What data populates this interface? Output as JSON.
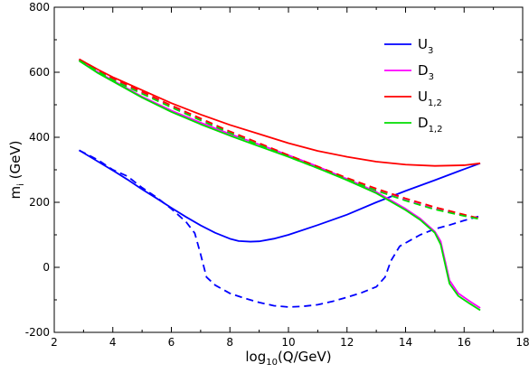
{
  "chart_data": {
    "type": "line",
    "title": "",
    "xlabel": {
      "main": "log",
      "sub": "10",
      "rest": "(Q/GeV)"
    },
    "ylabel": {
      "main": "m",
      "sub": "i",
      "rest": " (GeV)"
    },
    "xlim": [
      2,
      18
    ],
    "ylim": [
      -200,
      800
    ],
    "xticks": [
      2,
      4,
      6,
      8,
      10,
      12,
      14,
      16,
      18
    ],
    "yticks": [
      -200,
      0,
      200,
      400,
      600,
      800
    ],
    "xtick_labels": [
      "2",
      "4",
      "6",
      "8",
      "10",
      "12",
      "14",
      "16",
      "18"
    ],
    "ytick_labels": [
      "-200",
      "0",
      "200",
      "400",
      "600",
      "800"
    ],
    "grid": false,
    "legend_position": "top-right",
    "legend": [
      {
        "main": "U",
        "sub": "3",
        "color": "#0000ff"
      },
      {
        "main": "D",
        "sub": "3",
        "color": "#ff00ff"
      },
      {
        "main": "U",
        "sub": "1,2",
        "color": "#ff0000"
      },
      {
        "main": "D",
        "sub": "1,2",
        "color": "#00dd00"
      }
    ],
    "series": [
      {
        "name": "U3",
        "style": "solid",
        "color": "#0000ff",
        "points": [
          [
            2.85,
            360
          ],
          [
            3.5,
            325
          ],
          [
            4,
            298
          ],
          [
            4.5,
            270
          ],
          [
            5,
            240
          ],
          [
            5.5,
            212
          ],
          [
            6,
            183
          ],
          [
            6.5,
            155
          ],
          [
            7,
            129
          ],
          [
            7.5,
            106
          ],
          [
            8,
            88
          ],
          [
            8.3,
            81
          ],
          [
            8.7,
            79
          ],
          [
            9,
            80
          ],
          [
            9.5,
            88
          ],
          [
            10,
            100
          ],
          [
            11,
            130
          ],
          [
            12,
            162
          ],
          [
            13,
            200
          ],
          [
            14,
            235
          ],
          [
            15,
            268
          ],
          [
            16,
            302
          ],
          [
            16.55,
            320
          ]
        ]
      },
      {
        "name": "U3",
        "style": "dashed",
        "color": "#0000ff",
        "points": [
          [
            2.85,
            360
          ],
          [
            3.5,
            330
          ],
          [
            4,
            300
          ],
          [
            4.5,
            280
          ],
          [
            5,
            245
          ],
          [
            5.5,
            215
          ],
          [
            6,
            180
          ],
          [
            6.5,
            140
          ],
          [
            6.8,
            105
          ],
          [
            7.0,
            40
          ],
          [
            7.2,
            -30
          ],
          [
            7.5,
            -55
          ],
          [
            8,
            -80
          ],
          [
            8.5,
            -95
          ],
          [
            9,
            -108
          ],
          [
            9.5,
            -118
          ],
          [
            10,
            -122
          ],
          [
            10.5,
            -120
          ],
          [
            11,
            -115
          ],
          [
            11.5,
            -105
          ],
          [
            12,
            -92
          ],
          [
            12.5,
            -78
          ],
          [
            13,
            -60
          ],
          [
            13.3,
            -30
          ],
          [
            13.5,
            20
          ],
          [
            13.8,
            65
          ],
          [
            14.5,
            100
          ],
          [
            15,
            118
          ],
          [
            15.5,
            130
          ],
          [
            16,
            144
          ],
          [
            16.55,
            158
          ]
        ]
      },
      {
        "name": "D3",
        "style": "solid",
        "color": "#ff00ff",
        "points": [
          [
            2.85,
            638
          ],
          [
            3.5,
            600
          ],
          [
            4,
            575
          ],
          [
            5,
            525
          ],
          [
            6,
            482
          ],
          [
            7,
            445
          ],
          [
            8,
            410
          ],
          [
            9,
            378
          ],
          [
            10,
            345
          ],
          [
            11,
            310
          ],
          [
            12,
            272
          ],
          [
            13,
            232
          ],
          [
            14,
            180
          ],
          [
            14.5,
            150
          ],
          [
            15,
            110
          ],
          [
            15.2,
            80
          ],
          [
            15.35,
            20
          ],
          [
            15.5,
            -40
          ],
          [
            15.8,
            -80
          ],
          [
            16.2,
            -105
          ],
          [
            16.55,
            -125
          ]
        ]
      },
      {
        "name": "D3",
        "style": "dashed",
        "color": "#ff00ff",
        "points": [
          [
            2.85,
            640
          ],
          [
            4,
            580
          ],
          [
            5,
            538
          ],
          [
            6,
            496
          ],
          [
            7,
            456
          ],
          [
            8,
            417
          ],
          [
            9,
            380
          ],
          [
            10,
            344
          ],
          [
            11,
            308
          ],
          [
            12,
            272
          ],
          [
            13,
            238
          ],
          [
            14,
            207
          ],
          [
            15,
            180
          ],
          [
            16,
            160
          ],
          [
            16.55,
            150
          ]
        ]
      },
      {
        "name": "U1,2",
        "style": "solid",
        "color": "#ff0000",
        "points": [
          [
            2.85,
            640
          ],
          [
            3.5,
            608
          ],
          [
            4,
            585
          ],
          [
            5,
            545
          ],
          [
            6,
            505
          ],
          [
            7,
            470
          ],
          [
            8,
            438
          ],
          [
            9,
            410
          ],
          [
            10,
            382
          ],
          [
            11,
            358
          ],
          [
            12,
            340
          ],
          [
            13,
            325
          ],
          [
            14,
            316
          ],
          [
            15,
            312
          ],
          [
            16,
            314
          ],
          [
            16.55,
            320
          ]
        ]
      },
      {
        "name": "U1,2",
        "style": "dashed",
        "color": "#ff0000",
        "points": [
          [
            2.85,
            640
          ],
          [
            4,
            582
          ],
          [
            5,
            540
          ],
          [
            6,
            498
          ],
          [
            7,
            458
          ],
          [
            8,
            418
          ],
          [
            9,
            382
          ],
          [
            10,
            345
          ],
          [
            11,
            310
          ],
          [
            12,
            275
          ],
          [
            13,
            242
          ],
          [
            14,
            212
          ],
          [
            15,
            185
          ],
          [
            16,
            162
          ],
          [
            16.55,
            150
          ]
        ]
      },
      {
        "name": "D1,2",
        "style": "solid",
        "color": "#00dd00",
        "points": [
          [
            2.85,
            635
          ],
          [
            3.5,
            597
          ],
          [
            4,
            572
          ],
          [
            5,
            522
          ],
          [
            6,
            478
          ],
          [
            7,
            440
          ],
          [
            8,
            405
          ],
          [
            9,
            372
          ],
          [
            10,
            340
          ],
          [
            11,
            305
          ],
          [
            12,
            268
          ],
          [
            13,
            228
          ],
          [
            14,
            176
          ],
          [
            14.5,
            146
          ],
          [
            15,
            106
          ],
          [
            15.2,
            70
          ],
          [
            15.35,
            10
          ],
          [
            15.5,
            -50
          ],
          [
            15.8,
            -88
          ],
          [
            16.2,
            -112
          ],
          [
            16.55,
            -132
          ]
        ]
      },
      {
        "name": "D1,2",
        "style": "dashed",
        "color": "#00dd00",
        "points": [
          [
            2.85,
            636
          ],
          [
            4,
            576
          ],
          [
            5,
            534
          ],
          [
            6,
            492
          ],
          [
            7,
            452
          ],
          [
            8,
            413
          ],
          [
            9,
            376
          ],
          [
            10,
            340
          ],
          [
            11,
            305
          ],
          [
            12,
            270
          ],
          [
            13,
            236
          ],
          [
            14,
            205
          ],
          [
            15,
            178
          ],
          [
            16,
            158
          ],
          [
            16.55,
            148
          ]
        ]
      }
    ]
  }
}
